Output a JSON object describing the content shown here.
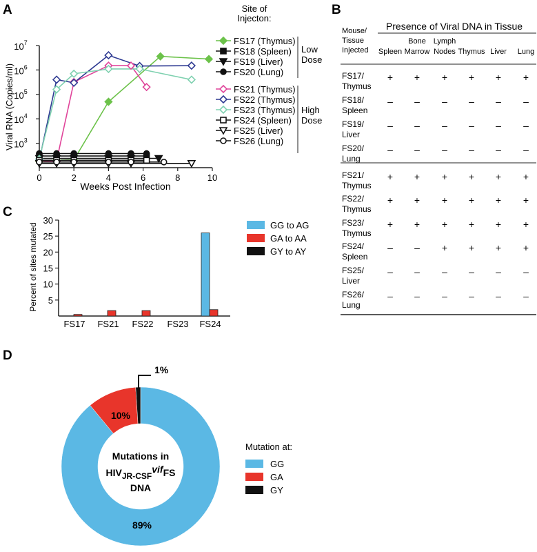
{
  "panels": {
    "A": {
      "letter": "A"
    },
    "B": {
      "letter": "B"
    },
    "C": {
      "letter": "C"
    },
    "D": {
      "letter": "D"
    }
  },
  "chart_data": [
    {
      "panel": "A",
      "type": "line",
      "xlabel": "Weeks Post Infection",
      "ylabel": "Viral RNA (Copies/ml)",
      "y_scale": "log",
      "xlim": [
        0,
        10
      ],
      "ylim": [
        100,
        10000000
      ],
      "x_ticks": [
        "0",
        "2",
        "4",
        "6",
        "8",
        "10"
      ],
      "y_ticks": [
        {
          "base": "10",
          "exp": "3",
          "value": 1000
        },
        {
          "base": "10",
          "exp": "4",
          "value": 10000
        },
        {
          "base": "10",
          "exp": "5",
          "value": 100000
        },
        {
          "base": "10",
          "exp": "6",
          "value": 1000000
        },
        {
          "base": "10",
          "exp": "7",
          "value": 10000000
        }
      ],
      "legend_title": "Site of\nInjecton:",
      "legend_title_lines": [
        "Site of",
        "Injecton:"
      ],
      "groups": [
        {
          "label": "Low\nDose",
          "label_lines": [
            "Low",
            "Dose"
          ]
        },
        {
          "label": "High\nDose",
          "label_lines": [
            "High",
            "Dose"
          ]
        }
      ],
      "series": [
        {
          "name": "FS17 (Thymus)",
          "color": "#6cc24a",
          "marker": "diamond",
          "fill": true,
          "group": 0,
          "x": [
            0,
            1,
            2,
            4,
            7,
            9.8
          ],
          "y": [
            180,
            200,
            210,
            50000,
            3600000,
            2800000
          ]
        },
        {
          "name": "FS18 (Spleen)",
          "color": "#111111",
          "marker": "square",
          "fill": true,
          "group": 0,
          "x": [
            0,
            1,
            2,
            4,
            5.3,
            6.2
          ],
          "y": [
            300,
            300,
            300,
            300,
            300,
            300
          ]
        },
        {
          "name": "FS19 (Liver)",
          "color": "#111111",
          "marker": "triangle-down",
          "fill": true,
          "group": 0,
          "x": [
            0,
            1,
            2,
            4,
            5.3,
            6.9
          ],
          "y": [
            240,
            240,
            240,
            240,
            240,
            240
          ]
        },
        {
          "name": "FS20 (Lung)",
          "color": "#111111",
          "marker": "circle",
          "fill": true,
          "group": 0,
          "x": [
            0,
            1,
            2,
            4,
            5.3,
            6.2
          ],
          "y": [
            380,
            380,
            380,
            380,
            380,
            380
          ]
        },
        {
          "name": "FS21 (Thymus)",
          "color": "#e0449a",
          "marker": "diamond",
          "fill": false,
          "group": 1,
          "x": [
            0,
            1,
            2,
            4,
            5.3,
            6.2
          ],
          "y": [
            190,
            190,
            320000,
            1500000,
            1500000,
            200000
          ]
        },
        {
          "name": "FS22 (Thymus)",
          "color": "#2e3a92",
          "marker": "diamond",
          "fill": false,
          "group": 1,
          "x": [
            0,
            1,
            2,
            4,
            5.8,
            8.8
          ],
          "y": [
            200,
            400000,
            300000,
            4000000,
            1450000,
            1500000
          ]
        },
        {
          "name": "FS23 (Thymus)",
          "color": "#7fd1b0",
          "marker": "diamond",
          "fill": false,
          "group": 1,
          "x": [
            0,
            1,
            2,
            4,
            5.8,
            8.8
          ],
          "y": [
            230,
            160000,
            700000,
            1100000,
            1100000,
            400000
          ]
        },
        {
          "name": "FS24 (Spleen)",
          "color": "#111111",
          "marker": "square",
          "fill": false,
          "group": 1,
          "x": [
            0,
            1,
            2,
            4,
            5.3,
            6.2
          ],
          "y": [
            200,
            200,
            200,
            200,
            200,
            200
          ]
        },
        {
          "name": "FS25 (Liver)",
          "color": "#111111",
          "marker": "triangle-down",
          "fill": false,
          "group": 1,
          "x": [
            0,
            1,
            2,
            4,
            5.3,
            8.8
          ],
          "y": [
            150,
            150,
            150,
            150,
            150,
            150
          ]
        },
        {
          "name": "FS26 (Lung)",
          "color": "#111111",
          "marker": "circle",
          "fill": false,
          "group": 1,
          "x": [
            0,
            1,
            2,
            4,
            5.3,
            7.2
          ],
          "y": [
            170,
            170,
            170,
            170,
            170,
            170
          ]
        }
      ]
    },
    {
      "panel": "C",
      "type": "bar",
      "ylabel": "Percent of sites mutated",
      "categories": [
        "FS17",
        "FS21",
        "FS22",
        "FS23",
        "FS24"
      ],
      "ylim": [
        0,
        30
      ],
      "y_ticks": [
        "5",
        "10",
        "15",
        "20",
        "25",
        "30"
      ],
      "legend": "top-right",
      "series": [
        {
          "name": "GG to AG",
          "color": "#5bb8e4",
          "values": [
            0,
            0,
            0,
            0,
            26
          ]
        },
        {
          "name": "GA to AA",
          "color": "#e8352b",
          "values": [
            0.5,
            1.7,
            1.7,
            0,
            2
          ]
        },
        {
          "name": "GY to AY",
          "color": "#111111",
          "values": [
            0,
            0,
            0,
            0,
            0
          ]
        }
      ]
    },
    {
      "panel": "D",
      "type": "pie",
      "donut": true,
      "center_text": {
        "l1": "Mutations in",
        "l2_main": "HIV",
        "l2_sub": "JR-CSF",
        "l2_sup": "vif",
        "l2_tail": "FS",
        "l3": "DNA"
      },
      "legend_title": "Mutation at:",
      "slices": [
        {
          "label": "GG",
          "value": 89,
          "value_text": "89%",
          "color": "#5bb8e4"
        },
        {
          "label": "GA",
          "value": 10,
          "value_text": "10%",
          "color": "#e8352b"
        },
        {
          "label": "GY",
          "value": 1,
          "value_text": "1%",
          "color": "#111111"
        }
      ]
    }
  ],
  "table_b": {
    "title": "Presence of Viral DNA in Tissue",
    "row_header": [
      "Mouse/",
      "Tissue",
      "Injected"
    ],
    "columns": [
      [
        "Spleen"
      ],
      [
        "Bone",
        "Marrow"
      ],
      [
        "Lymph",
        "Nodes"
      ],
      [
        "Thymus"
      ],
      [
        "Liver"
      ],
      [
        "Lung"
      ]
    ],
    "rows": [
      {
        "label": [
          "FS17/",
          "Thymus"
        ],
        "cells": [
          "+",
          "+",
          "+",
          "+",
          "+",
          "+"
        ]
      },
      {
        "label": [
          "FS18/",
          "Spleen"
        ],
        "cells": [
          "–",
          "–",
          "–",
          "–",
          "–",
          "–"
        ]
      },
      {
        "label": [
          "FS19/",
          "Liver"
        ],
        "cells": [
          "–",
          "–",
          "–",
          "–",
          "–",
          "–"
        ]
      },
      {
        "label": [
          "FS20/",
          "Lung"
        ],
        "cells": [
          "–",
          "–",
          "–",
          "–",
          "–",
          "–"
        ]
      },
      {
        "label": [
          "FS21/",
          "Thymus"
        ],
        "cells": [
          "+",
          "+",
          "+",
          "+",
          "+",
          "+"
        ]
      },
      {
        "label": [
          "FS22/",
          "Thymus"
        ],
        "cells": [
          "+",
          "+",
          "+",
          "+",
          "+",
          "+"
        ]
      },
      {
        "label": [
          "FS23/",
          "Thymus"
        ],
        "cells": [
          "+",
          "+",
          "+",
          "+",
          "+",
          "+"
        ]
      },
      {
        "label": [
          "FS24/",
          "Spleen"
        ],
        "cells": [
          "–",
          "–",
          "+",
          "+",
          "+",
          "+"
        ]
      },
      {
        "label": [
          "FS25/",
          "Liver"
        ],
        "cells": [
          "–",
          "–",
          "–",
          "–",
          "–",
          "–"
        ]
      },
      {
        "label": [
          "FS26/",
          "Lung"
        ],
        "cells": [
          "–",
          "–",
          "–",
          "–",
          "–",
          "–"
        ]
      }
    ]
  }
}
